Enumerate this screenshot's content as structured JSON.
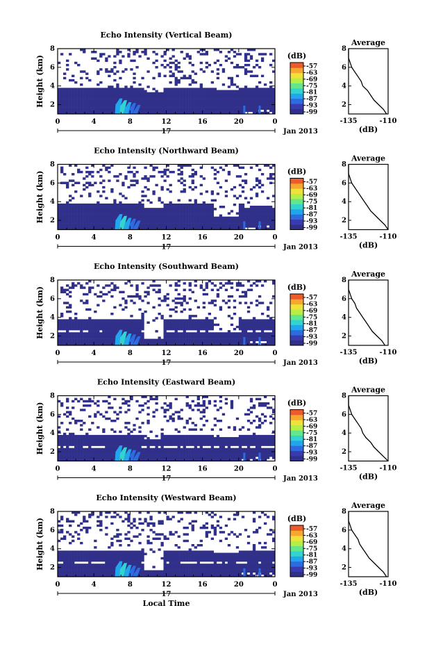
{
  "figure": {
    "date_label": "Jan 2013",
    "day_label": "17",
    "xlabel": "Local Time",
    "ylabel": "Height (km)",
    "colorbar_units": "(dB)",
    "avg_title": "Average",
    "avg_xlabel": "(dB)"
  },
  "chart_data": [
    {
      "type": "heatmap",
      "title": "Echo Intensity (Vertical Beam)",
      "beam": "vertical",
      "x_ticks": [
        "0",
        "4",
        "8",
        "12",
        "16",
        "20",
        "0"
      ],
      "xlim": [
        0,
        24
      ],
      "y_ticks": [
        "2",
        "4",
        "6",
        "8"
      ],
      "ylim": [
        1,
        8
      ],
      "colorbar": {
        "ticks": [
          "-57",
          "-63",
          "-69",
          "-75",
          "-81",
          "-87",
          "-93",
          "-99"
        ],
        "range": [
          -100,
          -55
        ]
      },
      "average_profile": {
        "x_ticks": [
          "-135",
          "-110"
        ],
        "xlim": [
          -135,
          -110
        ],
        "y_ticks": [
          "2",
          "4",
          "6",
          "8"
        ],
        "ylim": [
          1,
          8
        ],
        "heights_km": [
          1.0,
          1.5,
          2.0,
          2.5,
          3.0,
          3.5,
          4.0,
          4.5,
          5.0,
          5.5,
          6.0,
          6.5,
          7.0,
          7.5,
          8.0
        ],
        "values_db": [
          -111,
          -113,
          -116,
          -119,
          -121,
          -123,
          -126,
          -127,
          -129,
          -131,
          -133,
          -134,
          -135,
          -135,
          -135
        ]
      }
    },
    {
      "type": "heatmap",
      "title": "Echo Intensity (Northward Beam)",
      "beam": "northward",
      "x_ticks": [
        "0",
        "4",
        "8",
        "12",
        "16",
        "20",
        "0"
      ],
      "xlim": [
        0,
        24
      ],
      "y_ticks": [
        "2",
        "4",
        "6",
        "8"
      ],
      "ylim": [
        1,
        8
      ],
      "colorbar": {
        "ticks": [
          "-57",
          "-63",
          "-69",
          "-75",
          "-81",
          "-87",
          "-93",
          "-99"
        ],
        "range": [
          -100,
          -55
        ]
      },
      "average_profile": {
        "x_ticks": [
          "-135",
          "-110"
        ],
        "xlim": [
          -135,
          -110
        ],
        "y_ticks": [
          "2",
          "4",
          "6",
          "8"
        ],
        "ylim": [
          1,
          8
        ],
        "heights_km": [
          1.0,
          1.5,
          2.0,
          2.5,
          3.0,
          3.5,
          4.0,
          4.5,
          5.0,
          5.5,
          6.0,
          6.5,
          7.0,
          7.5,
          8.0
        ],
        "values_db": [
          -110,
          -112,
          -115,
          -118,
          -121,
          -123,
          -125,
          -127,
          -129,
          -131,
          -133,
          -134,
          -135,
          -135,
          -135
        ]
      }
    },
    {
      "type": "heatmap",
      "title": "Echo Intensity (Southward Beam)",
      "beam": "southward",
      "x_ticks": [
        "0",
        "4",
        "8",
        "12",
        "16",
        "20",
        "0"
      ],
      "xlim": [
        0,
        24
      ],
      "y_ticks": [
        "2",
        "4",
        "6",
        "8"
      ],
      "ylim": [
        1,
        8
      ],
      "colorbar": {
        "ticks": [
          "-57",
          "-63",
          "-69",
          "-75",
          "-81",
          "-87",
          "-93",
          "-99"
        ],
        "range": [
          -100,
          -55
        ]
      },
      "average_profile": {
        "x_ticks": [
          "-135",
          "-110"
        ],
        "xlim": [
          -135,
          -110
        ],
        "y_ticks": [
          "2",
          "4",
          "6",
          "8"
        ],
        "ylim": [
          1,
          8
        ],
        "heights_km": [
          1.0,
          1.5,
          2.0,
          2.5,
          3.0,
          3.5,
          4.0,
          4.5,
          5.0,
          5.5,
          6.0,
          6.5,
          7.0,
          7.5,
          8.0
        ],
        "values_db": [
          -112,
          -114,
          -117,
          -120,
          -122,
          -124,
          -126,
          -128,
          -130,
          -131,
          -133,
          -134,
          -135,
          -135,
          -135
        ]
      }
    },
    {
      "type": "heatmap",
      "title": "Echo Intensity (Eastward Beam)",
      "beam": "eastward",
      "x_ticks": [
        "0",
        "4",
        "8",
        "12",
        "16",
        "20",
        "0"
      ],
      "xlim": [
        0,
        24
      ],
      "y_ticks": [
        "2",
        "4",
        "6",
        "8"
      ],
      "ylim": [
        1,
        8
      ],
      "colorbar": {
        "ticks": [
          "-57",
          "-63",
          "-69",
          "-75",
          "-81",
          "-87",
          "-93",
          "-99"
        ],
        "range": [
          -100,
          -55
        ]
      },
      "average_profile": {
        "x_ticks": [
          "-135",
          "-110"
        ],
        "xlim": [
          -135,
          -110
        ],
        "y_ticks": [
          "2",
          "4",
          "6",
          "8"
        ],
        "ylim": [
          1,
          8
        ],
        "heights_km": [
          1.0,
          1.5,
          2.0,
          2.5,
          3.0,
          3.5,
          4.0,
          4.5,
          5.0,
          5.5,
          6.0,
          6.5,
          7.0,
          7.5,
          8.0
        ],
        "values_db": [
          -110,
          -113,
          -116,
          -119,
          -121,
          -124,
          -126,
          -127,
          -129,
          -131,
          -133,
          -134,
          -135,
          -135,
          -135
        ]
      }
    },
    {
      "type": "heatmap",
      "title": "Echo Intensity (Westward Beam)",
      "beam": "westward",
      "x_ticks": [
        "0",
        "4",
        "8",
        "12",
        "16",
        "20",
        "0"
      ],
      "xlim": [
        0,
        24
      ],
      "y_ticks": [
        "2",
        "4",
        "6",
        "8"
      ],
      "ylim": [
        1,
        8
      ],
      "colorbar": {
        "ticks": [
          "-57",
          "-63",
          "-69",
          "-75",
          "-81",
          "-87",
          "-93",
          "-99"
        ],
        "range": [
          -100,
          -55
        ]
      },
      "average_profile": {
        "x_ticks": [
          "-135",
          "-110"
        ],
        "xlim": [
          -135,
          -110
        ],
        "y_ticks": [
          "2",
          "4",
          "6",
          "8"
        ],
        "ylim": [
          1,
          8
        ],
        "heights_km": [
          1.0,
          1.5,
          2.0,
          2.5,
          3.0,
          3.5,
          4.0,
          4.5,
          5.0,
          5.5,
          6.0,
          6.5,
          7.0,
          7.5,
          8.0
        ],
        "values_db": [
          -111,
          -113,
          -116,
          -119,
          -122,
          -124,
          -126,
          -128,
          -129,
          -131,
          -133,
          -134,
          -135,
          -135,
          -135
        ]
      }
    }
  ],
  "colormap": [
    "#30308a",
    "#3a3bb0",
    "#2f6be0",
    "#21a6ee",
    "#33d4d0",
    "#62e88a",
    "#b6ee46",
    "#f0e23a",
    "#f7a72e",
    "#ee5b2b"
  ]
}
